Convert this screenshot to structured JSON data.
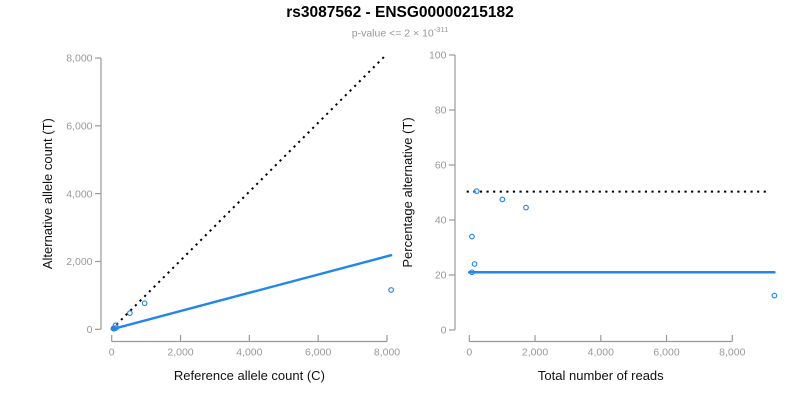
{
  "title": "rs3087562 - ENSG00000215182",
  "subtitle": {
    "main": "p-value <= 2 × 10",
    "exponent": "-311"
  },
  "colors": {
    "point_blue": "#2186EB",
    "fit_line_blue": "#2186EB",
    "reference_line_black": "#000000",
    "axis_line_gray": "#999999",
    "tick_label_gray": "#999999",
    "axis_title_black": "#111111",
    "title_black": "#000000",
    "subtitle_gray": "#999999"
  },
  "chart_data": [
    {
      "type": "scatter",
      "panel": "left",
      "xlabel": "Reference allele count (C)",
      "ylabel": "Alternative allele count (T)",
      "xlim": [
        0,
        8000
      ],
      "ylim": [
        0,
        8000
      ],
      "grid": false,
      "xticks": {
        "values": [
          0,
          2000,
          4000,
          6000,
          8000
        ],
        "labels": [
          "0",
          "2,000",
          "4,000",
          "6,000",
          "8,000"
        ]
      },
      "yticks": {
        "values": [
          0,
          2000,
          4000,
          6000,
          8000
        ],
        "labels": [
          "0",
          "2,000",
          "4,000",
          "6,000",
          "8,000"
        ]
      },
      "points": [
        {
          "x": 53,
          "y": 27
        },
        {
          "x": 63,
          "y": 17
        },
        {
          "x": 111,
          "y": 114
        },
        {
          "x": 122,
          "y": 38
        },
        {
          "x": 528,
          "y": 477
        },
        {
          "x": 957,
          "y": 768
        },
        {
          "x": 8120,
          "y": 1160
        }
      ],
      "lines": [
        {
          "name": "identity-line",
          "style": "dotted",
          "color": "#000000",
          "width": 2,
          "from": {
            "x": 0,
            "y": 0
          },
          "to": {
            "x": 7990,
            "y": 8110
          }
        },
        {
          "name": "fit-line",
          "style": "solid",
          "color": "#2186EB",
          "width": 2.4,
          "from": {
            "x": 0,
            "y": 0
          },
          "to": {
            "x": 8120,
            "y": 2185
          }
        }
      ]
    },
    {
      "type": "scatter",
      "panel": "right",
      "xlabel": "Total number of reads",
      "ylabel": "Percentage alternative (T)",
      "xlim": [
        0,
        8000
      ],
      "ylim": [
        0,
        100
      ],
      "grid": false,
      "xticks": {
        "values": [
          0,
          2000,
          4000,
          6000,
          8000
        ],
        "labels": [
          "0",
          "2,000",
          "4,000",
          "6,000",
          "8,000"
        ]
      },
      "yticks": {
        "values": [
          0,
          20,
          40,
          60,
          80,
          100
        ],
        "labels": [
          "0",
          "20",
          "40",
          "60",
          "80",
          "100"
        ]
      },
      "points": [
        {
          "x": 80,
          "y": 21
        },
        {
          "x": 80,
          "y": 34
        },
        {
          "x": 160,
          "y": 24
        },
        {
          "x": 225,
          "y": 50.5
        },
        {
          "x": 1005,
          "y": 47.5
        },
        {
          "x": 1725,
          "y": 44.5
        },
        {
          "x": 9280,
          "y": 12.5
        }
      ],
      "lines": [
        {
          "name": "fifty-percent-line",
          "style": "dotted",
          "color": "#000000",
          "width": 2,
          "from": {
            "x": -80,
            "y": 50.3
          },
          "to": {
            "x": 9050,
            "y": 50.3
          }
        },
        {
          "name": "fit-line",
          "style": "solid",
          "color": "#2186EB",
          "width": 2.6,
          "from": {
            "x": 0,
            "y": 21
          },
          "to": {
            "x": 9280,
            "y": 21
          }
        }
      ]
    }
  ]
}
